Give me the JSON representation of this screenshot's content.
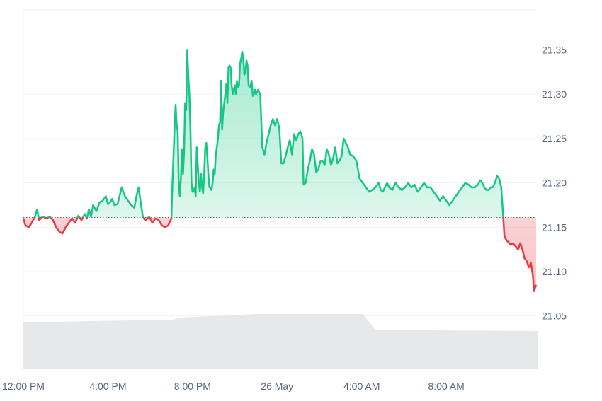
{
  "chart_data": {
    "type": "area",
    "baseline": 21.161,
    "colors": {
      "up": "#16c784",
      "down": "#ea3943",
      "volume": "#e6e8ea",
      "grid": "#eff2f5",
      "axis_text": "#58667e"
    },
    "ylim": [
      20.99,
      21.395
    ],
    "y_ticks": [
      21.05,
      21.1,
      21.15,
      21.2,
      21.25,
      21.3,
      21.35
    ],
    "y_tick_labels": [
      "21.05",
      "21.10",
      "21.15",
      "21.20",
      "21.25",
      "21.30",
      "21.35"
    ],
    "x_range_hours": [
      12.0,
      24.0
    ],
    "x_ticks": [
      {
        "hour": 12.0,
        "label": "12:00 PM"
      },
      {
        "hour": 16.0,
        "label": "4:00 PM"
      },
      {
        "hour": 20.0,
        "label": "8:00 PM"
      },
      {
        "hour": 24.0,
        "label": "26 May"
      },
      {
        "hour": 28.0,
        "label": "4:00 AM"
      },
      {
        "hour": 32.0,
        "label": "8:00 AM"
      }
    ],
    "x_max_hour": 36.25,
    "price": [
      [
        12.0,
        21.16
      ],
      [
        12.1,
        21.152
      ],
      [
        12.25,
        21.15
      ],
      [
        12.4,
        21.155
      ],
      [
        12.55,
        21.162
      ],
      [
        12.65,
        21.17
      ],
      [
        12.75,
        21.158
      ],
      [
        12.9,
        21.162
      ],
      [
        13.1,
        21.16
      ],
      [
        13.25,
        21.162
      ],
      [
        13.4,
        21.158
      ],
      [
        13.55,
        21.15
      ],
      [
        13.7,
        21.145
      ],
      [
        13.85,
        21.143
      ],
      [
        14.0,
        21.15
      ],
      [
        14.15,
        21.155
      ],
      [
        14.3,
        21.16
      ],
      [
        14.45,
        21.155
      ],
      [
        14.6,
        21.163
      ],
      [
        14.75,
        21.158
      ],
      [
        14.9,
        21.165
      ],
      [
        15.0,
        21.16
      ],
      [
        15.1,
        21.17
      ],
      [
        15.2,
        21.162
      ],
      [
        15.3,
        21.175
      ],
      [
        15.45,
        21.168
      ],
      [
        15.6,
        21.178
      ],
      [
        15.75,
        21.18
      ],
      [
        15.9,
        21.185
      ],
      [
        16.0,
        21.176
      ],
      [
        16.1,
        21.178
      ],
      [
        16.2,
        21.182
      ],
      [
        16.3,
        21.175
      ],
      [
        16.45,
        21.176
      ],
      [
        16.55,
        21.185
      ],
      [
        16.65,
        21.195
      ],
      [
        16.8,
        21.185
      ],
      [
        16.95,
        21.18
      ],
      [
        17.1,
        21.175
      ],
      [
        17.25,
        21.172
      ],
      [
        17.35,
        21.185
      ],
      [
        17.45,
        21.195
      ],
      [
        17.55,
        21.178
      ],
      [
        17.65,
        21.162
      ],
      [
        17.8,
        21.158
      ],
      [
        17.95,
        21.162
      ],
      [
        18.1,
        21.155
      ],
      [
        18.25,
        21.16
      ],
      [
        18.4,
        21.158
      ],
      [
        18.55,
        21.152
      ],
      [
        18.7,
        21.15
      ],
      [
        18.85,
        21.152
      ],
      [
        19.0,
        21.16
      ],
      [
        19.05,
        21.2
      ],
      [
        19.1,
        21.23
      ],
      [
        19.15,
        21.262
      ],
      [
        19.2,
        21.288
      ],
      [
        19.25,
        21.265
      ],
      [
        19.3,
        21.258
      ],
      [
        19.35,
        21.2
      ],
      [
        19.4,
        21.185
      ],
      [
        19.45,
        21.205
      ],
      [
        19.5,
        21.238
      ],
      [
        19.55,
        21.21
      ],
      [
        19.6,
        21.235
      ],
      [
        19.65,
        21.29
      ],
      [
        19.7,
        21.282
      ],
      [
        19.75,
        21.35
      ],
      [
        19.8,
        21.32
      ],
      [
        19.85,
        21.3
      ],
      [
        19.9,
        21.26
      ],
      [
        19.95,
        21.2
      ],
      [
        20.0,
        21.19
      ],
      [
        20.05,
        21.19
      ],
      [
        20.1,
        21.195
      ],
      [
        20.15,
        21.185
      ],
      [
        20.2,
        21.24
      ],
      [
        20.25,
        21.22
      ],
      [
        20.3,
        21.2
      ],
      [
        20.35,
        21.19
      ],
      [
        20.4,
        21.21
      ],
      [
        20.45,
        21.195
      ],
      [
        20.5,
        21.188
      ],
      [
        20.55,
        21.21
      ],
      [
        20.6,
        21.24
      ],
      [
        20.65,
        21.245
      ],
      [
        20.7,
        21.23
      ],
      [
        20.75,
        21.21
      ],
      [
        20.8,
        21.195
      ],
      [
        20.85,
        21.195
      ],
      [
        20.9,
        21.192
      ],
      [
        20.95,
        21.2
      ],
      [
        21.0,
        21.215
      ],
      [
        21.05,
        21.21
      ],
      [
        21.1,
        21.232
      ],
      [
        21.15,
        21.24
      ],
      [
        21.2,
        21.25
      ],
      [
        21.25,
        21.265
      ],
      [
        21.3,
        21.268
      ],
      [
        21.35,
        21.315
      ],
      [
        21.4,
        21.26
      ],
      [
        21.45,
        21.28
      ],
      [
        21.5,
        21.29
      ],
      [
        21.55,
        21.3
      ],
      [
        21.6,
        21.312
      ],
      [
        21.65,
        21.29
      ],
      [
        21.7,
        21.33
      ],
      [
        21.75,
        21.332
      ],
      [
        21.8,
        21.33
      ],
      [
        21.85,
        21.31
      ],
      [
        21.9,
        21.3
      ],
      [
        21.95,
        21.305
      ],
      [
        22.0,
        21.31
      ],
      [
        22.05,
        21.3
      ],
      [
        22.1,
        21.315
      ],
      [
        22.15,
        21.308
      ],
      [
        22.2,
        21.31
      ],
      [
        22.25,
        21.335
      ],
      [
        22.3,
        21.34
      ],
      [
        22.35,
        21.348
      ],
      [
        22.4,
        21.34
      ],
      [
        22.45,
        21.322
      ],
      [
        22.5,
        21.325
      ],
      [
        22.55,
        21.338
      ],
      [
        22.6,
        21.332
      ],
      [
        22.65,
        21.31
      ],
      [
        22.7,
        21.308
      ],
      [
        22.75,
        21.31
      ],
      [
        22.8,
        21.315
      ],
      [
        22.85,
        21.298
      ],
      [
        22.9,
        21.3
      ],
      [
        22.95,
        21.305
      ],
      [
        23.0,
        21.3
      ],
      [
        23.1,
        21.305
      ],
      [
        23.2,
        21.3
      ],
      [
        23.3,
        21.24
      ],
      [
        23.4,
        21.232
      ],
      [
        23.5,
        21.245
      ],
      [
        23.6,
        21.255
      ],
      [
        23.7,
        21.265
      ],
      [
        23.8,
        21.272
      ],
      [
        23.9,
        21.265
      ],
      [
        24.0,
        21.272
      ],
      [
        24.1,
        21.262
      ],
      [
        24.2,
        21.222
      ],
      [
        24.3,
        21.222
      ],
      [
        24.4,
        21.23
      ],
      [
        24.5,
        21.24
      ],
      [
        24.6,
        21.248
      ],
      [
        24.7,
        21.232
      ],
      [
        24.8,
        21.255
      ],
      [
        24.9,
        21.248
      ],
      [
        25.0,
        21.255
      ],
      [
        25.1,
        21.258
      ],
      [
        25.2,
        21.25
      ],
      [
        25.25,
        21.198
      ],
      [
        25.35,
        21.2
      ],
      [
        25.45,
        21.215
      ],
      [
        25.55,
        21.225
      ],
      [
        25.65,
        21.238
      ],
      [
        25.75,
        21.232
      ],
      [
        25.85,
        21.212
      ],
      [
        25.95,
        21.215
      ],
      [
        26.05,
        21.225
      ],
      [
        26.15,
        21.225
      ],
      [
        26.25,
        21.22
      ],
      [
        26.35,
        21.238
      ],
      [
        26.45,
        21.232
      ],
      [
        26.55,
        21.22
      ],
      [
        26.65,
        21.228
      ],
      [
        26.75,
        21.24
      ],
      [
        26.85,
        21.222
      ],
      [
        26.95,
        21.225
      ],
      [
        27.05,
        21.23
      ],
      [
        27.15,
        21.25
      ],
      [
        27.25,
        21.245
      ],
      [
        27.35,
        21.24
      ],
      [
        27.45,
        21.232
      ],
      [
        27.6,
        21.23
      ],
      [
        27.75,
        21.225
      ],
      [
        27.9,
        21.205
      ],
      [
        28.05,
        21.2
      ],
      [
        28.2,
        21.195
      ],
      [
        28.35,
        21.19
      ],
      [
        28.5,
        21.192
      ],
      [
        28.65,
        21.195
      ],
      [
        28.8,
        21.2
      ],
      [
        28.9,
        21.192
      ],
      [
        29.0,
        21.19
      ],
      [
        29.1,
        21.195
      ]
    ],
    "price_tail": [
      [
        29.2,
        21.2
      ],
      [
        29.3,
        21.195
      ],
      [
        29.45,
        21.192
      ],
      [
        29.6,
        21.2
      ],
      [
        29.75,
        21.195
      ],
      [
        29.9,
        21.192
      ],
      [
        30.05,
        21.195
      ],
      [
        30.2,
        21.2
      ],
      [
        30.35,
        21.195
      ],
      [
        30.5,
        21.198
      ],
      [
        30.65,
        21.19
      ],
      [
        30.8,
        21.195
      ],
      [
        30.95,
        21.2
      ],
      [
        31.1,
        21.195
      ],
      [
        31.25,
        21.195
      ],
      [
        31.4,
        21.19
      ],
      [
        31.55,
        21.185
      ],
      [
        31.7,
        21.18
      ],
      [
        31.85,
        21.185
      ],
      [
        32.0,
        21.18
      ],
      [
        32.15,
        21.175
      ],
      [
        32.3,
        21.18
      ],
      [
        32.45,
        21.185
      ],
      [
        32.6,
        21.19
      ],
      [
        32.75,
        21.195
      ],
      [
        32.9,
        21.2
      ],
      [
        33.05,
        21.198
      ],
      [
        33.2,
        21.195
      ],
      [
        33.35,
        21.195
      ],
      [
        33.5,
        21.198
      ],
      [
        33.6,
        21.203
      ],
      [
        33.7,
        21.2
      ],
      [
        33.8,
        21.195
      ],
      [
        33.9,
        21.192
      ],
      [
        34.0,
        21.192
      ],
      [
        34.1,
        21.195
      ],
      [
        34.2,
        21.195
      ],
      [
        34.3,
        21.2
      ],
      [
        34.4,
        21.208
      ],
      [
        34.5,
        21.205
      ],
      [
        34.6,
        21.195
      ],
      [
        34.7,
        21.16
      ],
      [
        34.75,
        21.14
      ],
      [
        34.85,
        21.135
      ],
      [
        34.95,
        21.133
      ],
      [
        35.05,
        21.13
      ],
      [
        35.15,
        21.132
      ],
      [
        35.3,
        21.128
      ],
      [
        35.4,
        21.125
      ],
      [
        35.5,
        21.132
      ],
      [
        35.6,
        21.125
      ],
      [
        35.7,
        21.115
      ],
      [
        35.8,
        21.112
      ],
      [
        35.9,
        21.105
      ],
      [
        36.0,
        21.11
      ],
      [
        36.1,
        21.095
      ],
      [
        36.15,
        21.078
      ],
      [
        36.25,
        21.085
      ]
    ],
    "volume_levels": [
      [
        12.0,
        0.55
      ],
      [
        16.0,
        0.57
      ],
      [
        19.0,
        0.58
      ],
      [
        19.5,
        0.61
      ],
      [
        21.5,
        0.63
      ],
      [
        23.0,
        0.65
      ],
      [
        28.0,
        0.65
      ],
      [
        28.6,
        0.46
      ],
      [
        36.25,
        0.45
      ]
    ]
  }
}
